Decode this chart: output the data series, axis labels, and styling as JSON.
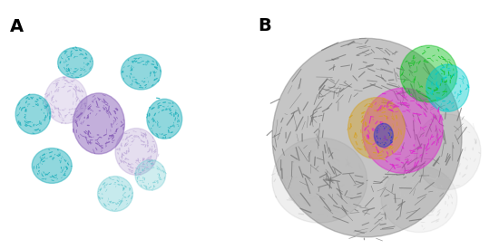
{
  "figure_width": 5.5,
  "figure_height": 2.75,
  "dpi": 100,
  "background_color": "#ffffff",
  "panel_A_label": "A",
  "panel_B_label": "B",
  "label_fontsize": 14,
  "label_fontweight": "bold",
  "label_color": "#000000"
}
